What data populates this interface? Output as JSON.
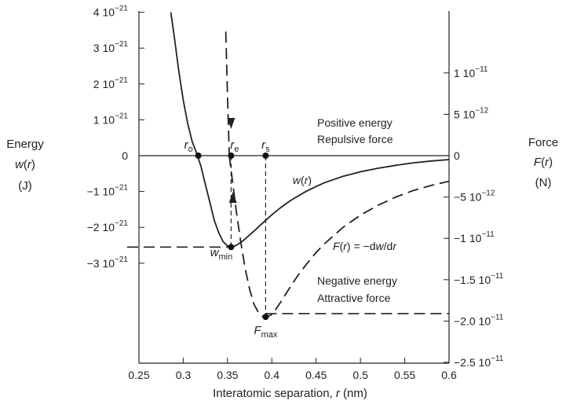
{
  "chart_data": {
    "type": "line",
    "xlabel": "Interatomic separation, r (nm)",
    "xlim": [
      0.25,
      0.6
    ],
    "x_ticks": [
      "0.25",
      "0.3",
      "0.35",
      "0.4",
      "0.45",
      "0.5",
      "0.55",
      "0.6"
    ],
    "left_axis": {
      "label_lines": [
        "Energy",
        "w(r)",
        "(J)"
      ],
      "ylim": [
        -6.5e-21,
        4e-21
      ],
      "ticks": [
        {
          "value": 4e-21,
          "mant": "4 10",
          "exp": "−21"
        },
        {
          "value": 3e-21,
          "mant": "3 10",
          "exp": "−21"
        },
        {
          "value": 2e-21,
          "mant": "2 10",
          "exp": "−21"
        },
        {
          "value": 1e-21,
          "mant": "1 10",
          "exp": "−21"
        },
        {
          "value": 0,
          "mant": "0",
          "exp": ""
        },
        {
          "value": -1e-21,
          "mant": "−1 10",
          "exp": "−21"
        },
        {
          "value": -2e-21,
          "mant": "−2 10",
          "exp": "−21"
        },
        {
          "value": -3e-21,
          "mant": "−3 10",
          "exp": "−21"
        }
      ]
    },
    "right_axis": {
      "label_lines": [
        "Force",
        "F(r)",
        "(N)"
      ],
      "ylim": [
        -2.5e-11,
        1.5e-11
      ],
      "ticks": [
        {
          "value": 1e-11,
          "mant": "1 10",
          "exp": "−11"
        },
        {
          "value": 5e-12,
          "mant": "5 10",
          "exp": "−12"
        },
        {
          "value": 0,
          "mant": "0",
          "exp": ""
        },
        {
          "value": -5e-12,
          "mant": "−5 10",
          "exp": "−12"
        },
        {
          "value": -1e-11,
          "mant": "−1 10",
          "exp": "−11"
        },
        {
          "value": -1.5e-11,
          "mant": "−1.5 10",
          "exp": "−11"
        },
        {
          "value": -2e-11,
          "mant": "−2.0 10",
          "exp": "−11"
        },
        {
          "value": -2.5e-11,
          "mant": "−2.5 10",
          "exp": "−11"
        }
      ]
    },
    "series": [
      {
        "name": "w(r)",
        "axis": "left",
        "style": "solid",
        "x": [
          0.286,
          0.29,
          0.295,
          0.3,
          0.305,
          0.31,
          0.315,
          0.32,
          0.325,
          0.33,
          0.335,
          0.34,
          0.345,
          0.35,
          0.355,
          0.36,
          0.365,
          0.37,
          0.38,
          0.39,
          0.4,
          0.41,
          0.42,
          0.43,
          0.44,
          0.45,
          0.46,
          0.48,
          0.5,
          0.52,
          0.54,
          0.56,
          0.58,
          0.6
        ],
        "y": [
          4e-21,
          3.3e-21,
          2.35e-21,
          1.55e-21,
          9e-22,
          4e-22,
          7e-23,
          -3e-22,
          -8e-22,
          -1.3e-21,
          -1.8e-21,
          -2.15e-21,
          -2.4e-21,
          -2.52e-21,
          -2.55e-21,
          -2.5e-21,
          -2.42e-21,
          -2.32e-21,
          -2.1e-21,
          -1.87e-21,
          -1.65e-21,
          -1.45e-21,
          -1.27e-21,
          -1.12e-21,
          -9.8e-22,
          -8.6e-22,
          -7.5e-22,
          -5.8e-22,
          -4.5e-22,
          -3.5e-22,
          -2.7e-22,
          -2e-22,
          -1.5e-22,
          -1.1e-22
        ]
      },
      {
        "name": "F(r) = −dw/dr",
        "axis": "right",
        "style": "dashed",
        "x": [
          0.352,
          0.355,
          0.36,
          0.365,
          0.37,
          0.375,
          0.38,
          0.385,
          0.39,
          0.395,
          0.4,
          0.405,
          0.41,
          0.42,
          0.43,
          0.44,
          0.45,
          0.46,
          0.48,
          0.5,
          0.52,
          0.54,
          0.56,
          0.58,
          0.6
        ],
        "y": [
          0,
          -2.6e-12,
          -6.8e-12,
          -1.05e-11,
          -1.37e-11,
          -1.62e-11,
          -1.8e-11,
          -1.9e-11,
          -1.95e-11,
          -1.95e-11,
          -1.92e-11,
          -1.85e-11,
          -1.77e-11,
          -1.6e-11,
          -1.44e-11,
          -1.3e-11,
          -1.17e-11,
          -1.06e-11,
          -8.7e-12,
          -7.2e-12,
          -6e-12,
          -5e-12,
          -4.2e-12,
          -3.6e-12,
          -3.1e-12
        ]
      },
      {
        "name": "F(r) upper",
        "axis": "right",
        "style": "dashed",
        "x": [
          0.348,
          0.35,
          0.352
        ],
        "y": [
          1.5e-11,
          7e-12,
          0
        ]
      }
    ],
    "markers": [
      {
        "x": 0.317,
        "axis": "left",
        "y": 0
      },
      {
        "x": 0.354,
        "axis": "left",
        "y": 0
      },
      {
        "x": 0.393,
        "axis": "left",
        "y": 0
      },
      {
        "x": 0.354,
        "axis": "left",
        "y": -2.55e-21
      },
      {
        "x": 0.393,
        "axis": "right",
        "y": -1.95e-11
      }
    ],
    "annotations": {
      "r0": {
        "base": "r",
        "sub": "o"
      },
      "re": {
        "base": "r",
        "sub": "e"
      },
      "rs": {
        "base": "r",
        "sub": "s"
      },
      "wmin": {
        "base": "w",
        "sub": "min"
      },
      "fmax": {
        "base": "F",
        "sub": "max"
      },
      "wr_label": "w(r)",
      "fr_label": "F(r) = −dw/dr",
      "positive_1": "Positive energy",
      "positive_2": "Repulsive force",
      "negative_1": "Negative energy",
      "negative_2": "Attractive force"
    }
  }
}
